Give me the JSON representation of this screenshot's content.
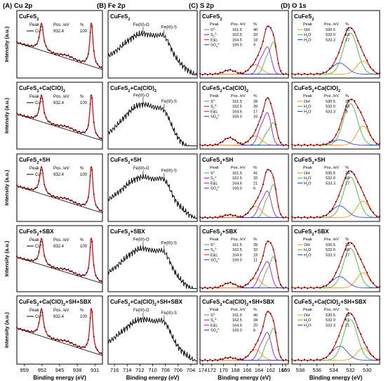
{
  "figure": {
    "y_axis_label": "Intensity (a.u.)",
    "x_axis_label": "Binding energy (eV)"
  },
  "columns": [
    {
      "title": "(A) Cu 2p",
      "x_ticks": [
        "959",
        "952",
        "945",
        "938",
        "931"
      ],
      "legend_header": [
        "Peak",
        "Pos. /eV",
        "%"
      ],
      "legend_rows": [
        {
          "peak": "Cu",
          "peak_sup": "1+",
          "pos": "932.4",
          "pct": "100",
          "color": "#000000"
        }
      ]
    },
    {
      "title": "(B) Fe 2p",
      "x_ticks": [
        "716",
        "714",
        "712",
        "710",
        "708",
        "706",
        "704"
      ],
      "annotations": [
        "Fe(III)-O",
        "Fe(III)-S"
      ]
    },
    {
      "title": "(C) S 2p",
      "x_ticks": [
        "174",
        "172",
        "170",
        "168",
        "166",
        "164",
        "162",
        "160",
        "159"
      ],
      "legend_header": [
        "Peak",
        "Pos. /eV",
        "%"
      ]
    },
    {
      "title": "(D) O 1s",
      "x_ticks": [
        "538",
        "536",
        "534",
        "532",
        "530"
      ],
      "legend_header": [
        "Peak",
        "Pos. /eV",
        "%"
      ]
    }
  ],
  "rows": [
    {
      "sample": "CuFeS2"
    },
    {
      "sample": "CuFeS2+Ca(ClO)2"
    },
    {
      "sample": "CuFeS2+SH"
    },
    {
      "sample": "CuFeS2+SBX"
    },
    {
      "sample": "CuFeS2+Ca(ClO)2+SH+SBX"
    }
  ],
  "chart_data": [
    {
      "type": "line",
      "panel": "Cu 2p",
      "xlabel": "Binding energy (eV)",
      "ylabel": "Intensity (a.u.)",
      "x_reversed": true,
      "xlim": [
        962,
        928
      ],
      "peaks_ev": [
        952.2,
        932.4
      ],
      "samples": [
        "CuFeS2",
        "CuFeS2+Ca(ClO)2",
        "CuFeS2+SH",
        "CuFeS2+SBX",
        "CuFeS2+Ca(ClO)2+SH+SBX"
      ],
      "legend": [
        {
          "peak": "Cu1+",
          "pos_ev": 932.4,
          "percent": [
            100,
            100,
            100,
            100,
            100
          ]
        }
      ]
    },
    {
      "type": "line",
      "panel": "Fe 2p",
      "xlabel": "Binding energy (eV)",
      "ylabel": "Intensity (a.u.)",
      "x_reversed": true,
      "xlim": [
        717,
        703
      ],
      "samples": [
        "CuFeS2",
        "CuFeS2+Ca(ClO)2",
        "CuFeS2+SH",
        "CuFeS2+SBX",
        "CuFeS2+Ca(ClO)2+SH+SBX"
      ],
      "annotations": [
        "Fe(III)-O",
        "Fe(III)-S"
      ]
    },
    {
      "type": "line",
      "panel": "S 2p",
      "xlabel": "Binding energy (eV)",
      "ylabel": "Intensity (a.u.)",
      "x_reversed": true,
      "xlim": [
        174,
        159
      ],
      "samples": [
        "CuFeS2",
        "CuFeS2+Ca(ClO)2",
        "CuFeS2+SH",
        "CuFeS2+SBX",
        "CuFeS2+Ca(ClO)2+SH+SBX"
      ],
      "series": [
        {
          "name": "S2-",
          "pos_ev": 161.5,
          "color": "#22bb22",
          "percent": [
            40,
            28,
            41,
            39,
            40
          ]
        },
        {
          "name": "S22-",
          "pos_ev": 162.5,
          "color": "#9900cc",
          "percent": [
            33,
            39,
            32,
            32,
            34
          ]
        },
        {
          "name": "E&L",
          "pos_ev": 164.6,
          "color": "#dd2222",
          "percent": [
            18,
            17,
            21,
            18,
            20
          ]
        },
        {
          "name": "SO42-",
          "pos_ev": 169.0,
          "color": "#2233cc",
          "percent": [
            9,
            16,
            6,
            11,
            6
          ]
        }
      ]
    },
    {
      "type": "line",
      "panel": "O 1s",
      "xlabel": "Binding energy (eV)",
      "ylabel": "Intensity (a.u.)",
      "x_reversed": true,
      "xlim": [
        539,
        528.5
      ],
      "samples": [
        "CuFeS2",
        "CuFeS2+Ca(ClO)2",
        "CuFeS2+SH",
        "CuFeS2+SBX",
        "CuFeS2+Ca(ClO)2+SH+SBX"
      ],
      "series": [
        {
          "name": "OH-",
          "pos_ev": 530.5,
          "color": "#ff8800",
          "percent": [
            20,
            29,
            24,
            23,
            18
          ]
        },
        {
          "name": "H2O",
          "pos_ev": 532.0,
          "color": "#22bb22",
          "percent": [
            63,
            63,
            59,
            60,
            61
          ]
        },
        {
          "name": "H2O",
          "pos_ev": 533.3,
          "color": "#2233cc",
          "percent": [
            17,
            8,
            17,
            17,
            21
          ]
        }
      ]
    }
  ]
}
